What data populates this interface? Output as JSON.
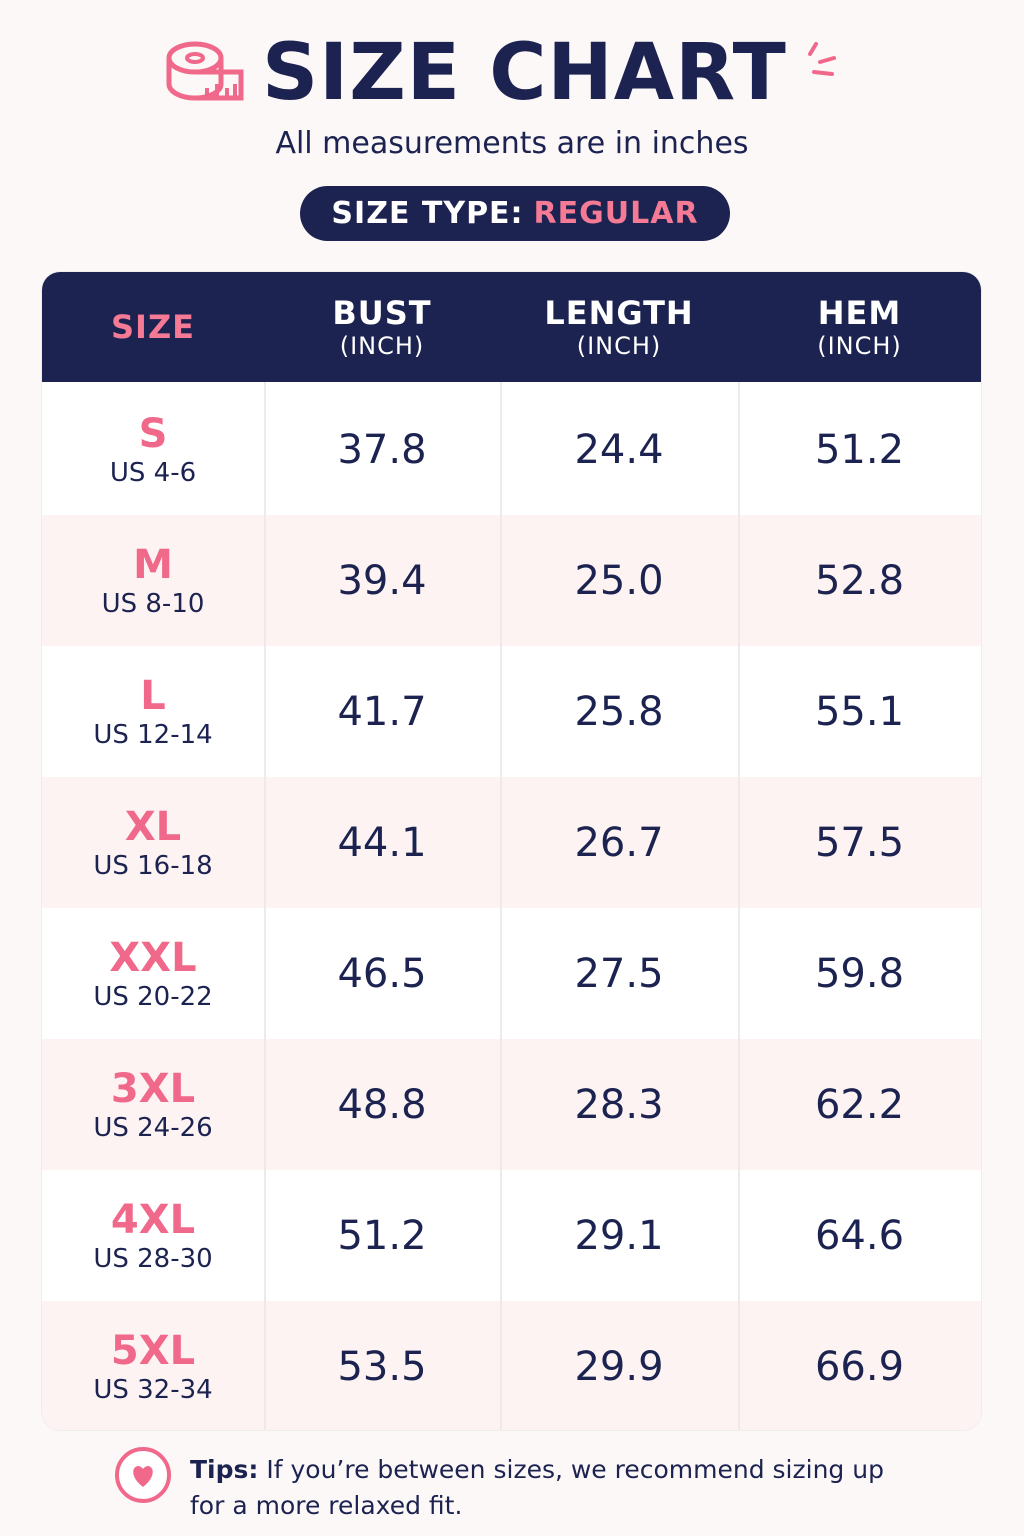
{
  "header": {
    "title": "SIZE CHART",
    "subtitle": "All measurements are in inches",
    "size_type_label": "SIZE TYPE:",
    "size_type_value": "REGULAR"
  },
  "table": {
    "columns": [
      {
        "name": "SIZE"
      },
      {
        "name": "BUST",
        "unit": "(INCH)"
      },
      {
        "name": "LENGTH",
        "unit": "(INCH)"
      },
      {
        "name": "HEM",
        "unit": "(INCH)"
      }
    ],
    "rows": [
      {
        "size": "S",
        "us": "US 4-6",
        "values": [
          "37.8",
          "24.4",
          "51.2"
        ]
      },
      {
        "size": "M",
        "us": "US 8-10",
        "values": [
          "39.4",
          "25.0",
          "52.8"
        ]
      },
      {
        "size": "L",
        "us": "US 12-14",
        "values": [
          "41.7",
          "25.8",
          "55.1"
        ]
      },
      {
        "size": "XL",
        "us": "US 16-18",
        "values": [
          "44.1",
          "26.7",
          "57.5"
        ]
      },
      {
        "size": "XXL",
        "us": "US 20-22",
        "values": [
          "46.5",
          "27.5",
          "59.8"
        ]
      },
      {
        "size": "3XL",
        "us": "US 24-26",
        "values": [
          "48.8",
          "28.3",
          "62.2"
        ]
      },
      {
        "size": "4XL",
        "us": "US 28-30",
        "values": [
          "51.2",
          "29.1",
          "64.6"
        ]
      },
      {
        "size": "5XL",
        "us": "US 32-34",
        "values": [
          "53.5",
          "29.9",
          "66.9"
        ]
      }
    ]
  },
  "tips": {
    "label": "Tips:",
    "text": "If you’re between sizes, we recommend sizing up for a more relaxed fit."
  }
}
